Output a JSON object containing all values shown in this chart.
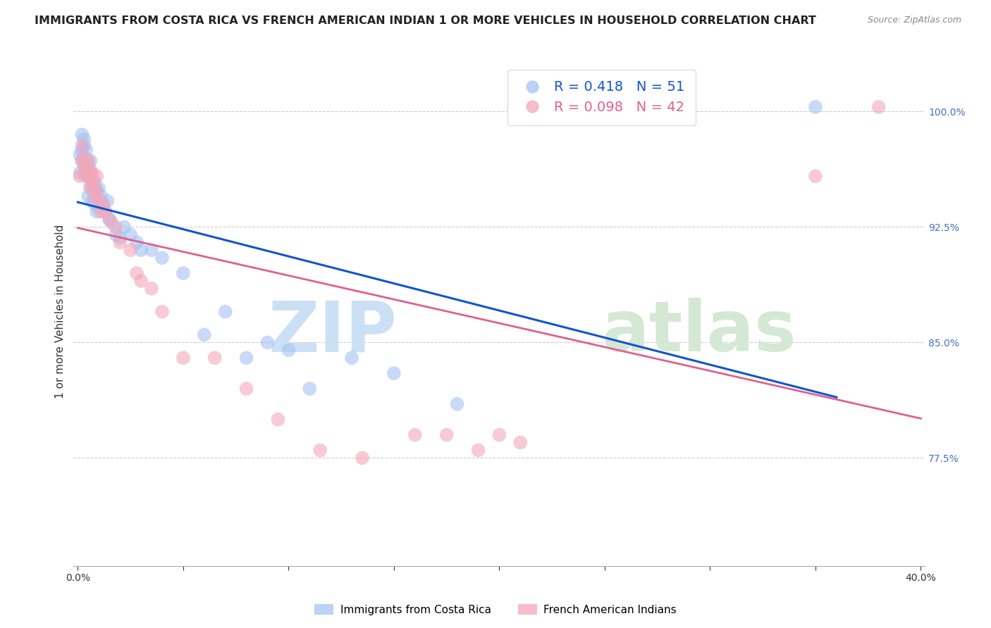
{
  "title": "IMMIGRANTS FROM COSTA RICA VS FRENCH AMERICAN INDIAN 1 OR MORE VEHICLES IN HOUSEHOLD CORRELATION CHART",
  "source": "Source: ZipAtlas.com",
  "ylabel": "1 or more Vehicles in Household",
  "ytick_values": [
    0.775,
    0.85,
    0.925,
    1.0
  ],
  "ytick_labels": [
    "77.5%",
    "85.0%",
    "92.5%",
    "100.0%"
  ],
  "xlim": [
    -0.002,
    0.402
  ],
  "ylim": [
    0.705,
    1.035
  ],
  "legend_blue_r": "0.418",
  "legend_blue_n": "51",
  "legend_pink_r": "0.098",
  "legend_pink_n": "42",
  "legend_blue_label": "Immigrants from Costa Rica",
  "legend_pink_label": "French American Indians",
  "blue_color": "#a4c2f4",
  "pink_color": "#f4a7b9",
  "line_blue_color": "#1155cc",
  "line_pink_color": "#e06090",
  "watermark_zip": "ZIP",
  "watermark_atlas": "atlas",
  "watermark_color_zip": "#cce0f5",
  "watermark_color_atlas": "#d5e8d4",
  "title_fontsize": 11.5,
  "source_fontsize": 9,
  "ylabel_fontsize": 11,
  "tick_fontsize": 10,
  "legend_fontsize": 14,
  "watermark_fontsize": 72,
  "blue_scatter_x": [
    0.001,
    0.001,
    0.002,
    0.002,
    0.002,
    0.003,
    0.003,
    0.003,
    0.003,
    0.004,
    0.004,
    0.004,
    0.005,
    0.005,
    0.005,
    0.006,
    0.006,
    0.006,
    0.007,
    0.007,
    0.008,
    0.008,
    0.009,
    0.009,
    0.01,
    0.01,
    0.011,
    0.012,
    0.013,
    0.014,
    0.015,
    0.016,
    0.018,
    0.02,
    0.022,
    0.025,
    0.028,
    0.03,
    0.035,
    0.04,
    0.05,
    0.06,
    0.07,
    0.08,
    0.09,
    0.1,
    0.11,
    0.13,
    0.15,
    0.18,
    0.35
  ],
  "blue_scatter_y": [
    0.96,
    0.972,
    0.968,
    0.975,
    0.985,
    0.965,
    0.97,
    0.978,
    0.982,
    0.96,
    0.968,
    0.975,
    0.945,
    0.958,
    0.965,
    0.95,
    0.96,
    0.968,
    0.942,
    0.955,
    0.94,
    0.952,
    0.935,
    0.948,
    0.938,
    0.95,
    0.945,
    0.94,
    0.935,
    0.942,
    0.93,
    0.928,
    0.92,
    0.918,
    0.925,
    0.92,
    0.915,
    0.91,
    0.91,
    0.905,
    0.895,
    0.855,
    0.87,
    0.84,
    0.85,
    0.845,
    0.82,
    0.84,
    0.83,
    0.81,
    1.003
  ],
  "pink_scatter_x": [
    0.001,
    0.002,
    0.002,
    0.003,
    0.003,
    0.004,
    0.004,
    0.005,
    0.005,
    0.006,
    0.006,
    0.007,
    0.007,
    0.008,
    0.008,
    0.009,
    0.009,
    0.01,
    0.011,
    0.012,
    0.013,
    0.015,
    0.018,
    0.02,
    0.025,
    0.028,
    0.03,
    0.035,
    0.04,
    0.05,
    0.065,
    0.08,
    0.095,
    0.115,
    0.135,
    0.16,
    0.175,
    0.19,
    0.2,
    0.21,
    0.35,
    0.38
  ],
  "pink_scatter_y": [
    0.958,
    0.968,
    0.978,
    0.96,
    0.97,
    0.958,
    0.965,
    0.958,
    0.968,
    0.952,
    0.962,
    0.95,
    0.96,
    0.945,
    0.955,
    0.948,
    0.958,
    0.942,
    0.935,
    0.94,
    0.935,
    0.93,
    0.925,
    0.915,
    0.91,
    0.895,
    0.89,
    0.885,
    0.87,
    0.84,
    0.84,
    0.82,
    0.8,
    0.78,
    0.775,
    0.79,
    0.79,
    0.78,
    0.79,
    0.785,
    0.958,
    1.003
  ]
}
